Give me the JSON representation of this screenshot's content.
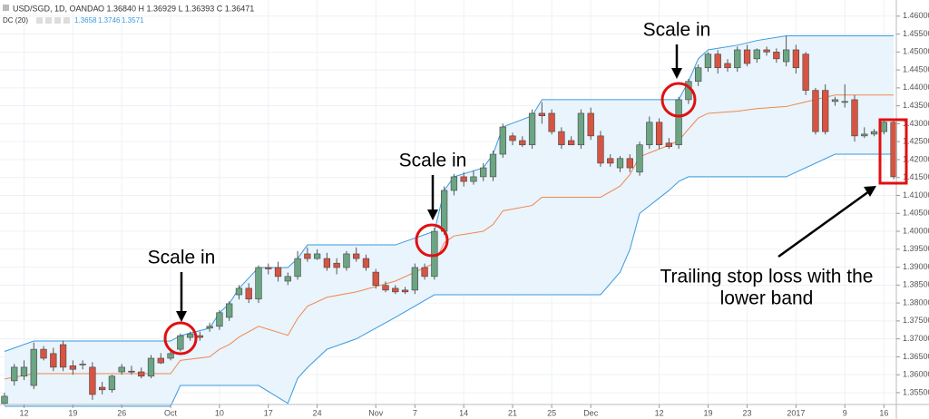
{
  "chart_data": {
    "type": "candlestick",
    "symbol": "USD/SGD, 1D, OANDA",
    "ohlc_text": "O 1.36840 H 1.36929 L 1.36393 C 1.36471",
    "indicator_name": "DC (20)",
    "indicator_values": [
      "1.3658",
      "1.3746",
      "1.3571"
    ],
    "up_color": "#6ba583",
    "down_color": "#d75442",
    "grid": true,
    "xlim": [
      -0.46,
      91.27
    ],
    "ylim": [
      1.3517,
      1.4645
    ],
    "yticks": [
      {
        "value": 1.355,
        "label": "1.35500"
      },
      {
        "value": 1.36,
        "label": "1.36000"
      },
      {
        "value": 1.365,
        "label": "1.36500"
      },
      {
        "value": 1.37,
        "label": "1.37000"
      },
      {
        "value": 1.375,
        "label": "1.37500"
      },
      {
        "value": 1.38,
        "label": "1.38000"
      },
      {
        "value": 1.385,
        "label": "1.38500"
      },
      {
        "value": 1.39,
        "label": "1.39000"
      },
      {
        "value": 1.395,
        "label": "1.39500"
      },
      {
        "value": 1.4,
        "label": "1.40000"
      },
      {
        "value": 1.405,
        "label": "1.40500"
      },
      {
        "value": 1.41,
        "label": "1.41000"
      },
      {
        "value": 1.415,
        "label": "1.41500"
      },
      {
        "value": 1.42,
        "label": "1.42000"
      },
      {
        "value": 1.425,
        "label": "1.42500"
      },
      {
        "value": 1.43,
        "label": "1.43000"
      },
      {
        "value": 1.435,
        "label": "1.43500"
      },
      {
        "value": 1.44,
        "label": "1.44000"
      },
      {
        "value": 1.445,
        "label": "1.44500"
      },
      {
        "value": 1.45,
        "label": "1.45000"
      },
      {
        "value": 1.455,
        "label": "1.45500"
      },
      {
        "value": 1.46,
        "label": "1.46000"
      }
    ],
    "xticks": [
      {
        "value": 2,
        "label": "12"
      },
      {
        "value": 7,
        "label": "19"
      },
      {
        "value": 12,
        "label": "26"
      },
      {
        "value": 17,
        "label": "Oct"
      },
      {
        "value": 22,
        "label": "10"
      },
      {
        "value": 27,
        "label": "17"
      },
      {
        "value": 32,
        "label": "24"
      },
      {
        "value": 38,
        "label": "Nov"
      },
      {
        "value": 42,
        "label": "7"
      },
      {
        "value": 47,
        "label": "14"
      },
      {
        "value": 52,
        "label": "21"
      },
      {
        "value": 56,
        "label": "25"
      },
      {
        "value": 60,
        "label": "Dec"
      },
      {
        "value": 67,
        "label": "12"
      },
      {
        "value": 72,
        "label": "19"
      },
      {
        "value": 76,
        "label": "23"
      },
      {
        "value": 81,
        "label": "2017"
      },
      {
        "value": 86,
        "label": "9"
      },
      {
        "value": 90,
        "label": "16"
      }
    ],
    "open": [
      1.352,
      1.3583,
      1.3596,
      1.357,
      1.3671,
      1.3659,
      1.3684,
      1.3625,
      1.3628,
      1.3621,
      1.3565,
      1.3558,
      1.3608,
      1.361,
      1.3608,
      1.3596,
      1.3646,
      1.3646,
      1.3671,
      1.3704,
      1.3709,
      1.373,
      1.3735,
      1.376,
      1.3823,
      1.3841,
      1.3811,
      1.3899,
      1.3899,
      1.3861,
      1.3874,
      1.3937,
      1.3924,
      1.3924,
      1.3911,
      1.3899,
      1.3937,
      1.3924,
      1.3886,
      1.3849,
      1.3841,
      1.3836,
      1.3836,
      1.3899,
      1.3874,
      1.4,
      1.4114,
      1.4152,
      1.4139,
      1.4152,
      1.4152,
      1.4215,
      1.4266,
      1.4253,
      1.4241,
      1.4329,
      1.4329,
      1.4278,
      1.4253,
      1.4241,
      1.4329,
      1.4266,
      1.4203,
      1.4177,
      1.4203,
      1.4165,
      1.4241,
      1.4304,
      1.4246,
      1.4241,
      1.4367,
      1.4418,
      1.4456,
      1.4494,
      1.4468,
      1.4456,
      1.4506,
      1.4481,
      1.4506,
      1.45,
      1.4473,
      1.4506,
      1.4494,
      1.4393,
      1.4393,
      1.4362,
      1.4362,
      1.4367,
      1.4266,
      1.4271,
      1.4278,
      1.4304
    ],
    "high": [
      1.355,
      1.363,
      1.364,
      1.369,
      1.368,
      1.3675,
      1.3695,
      1.364,
      1.364,
      1.3635,
      1.358,
      1.36,
      1.363,
      1.3625,
      1.362,
      1.3655,
      1.366,
      1.3665,
      1.3715,
      1.372,
      1.372,
      1.3745,
      1.378,
      1.3805,
      1.385,
      1.3855,
      1.3905,
      1.391,
      1.3915,
      1.3885,
      1.3945,
      1.3955,
      1.395,
      1.394,
      1.3925,
      1.3945,
      1.3955,
      1.3935,
      1.3895,
      1.386,
      1.385,
      1.3845,
      1.391,
      1.391,
      1.401,
      1.4125,
      1.416,
      1.4165,
      1.417,
      1.419,
      1.4225,
      1.43,
      1.4275,
      1.4265,
      1.434,
      1.436,
      1.434,
      1.429,
      1.4265,
      1.434,
      1.4345,
      1.428,
      1.4215,
      1.421,
      1.4215,
      1.425,
      1.432,
      1.4315,
      1.426,
      1.4375,
      1.4425,
      1.4465,
      1.45,
      1.4505,
      1.448,
      1.4515,
      1.452,
      1.451,
      1.4515,
      1.451,
      1.4545,
      1.452,
      1.45,
      1.44,
      1.441,
      1.4375,
      1.441,
      1.438,
      1.429,
      1.4285,
      1.431,
      1.431
    ],
    "low": [
      1.3515,
      1.357,
      1.3585,
      1.356,
      1.364,
      1.361,
      1.361,
      1.36,
      1.3615,
      1.353,
      1.3545,
      1.355,
      1.36,
      1.36,
      1.359,
      1.359,
      1.363,
      1.364,
      1.3665,
      1.3695,
      1.3695,
      1.372,
      1.3725,
      1.375,
      1.381,
      1.38,
      1.38,
      1.388,
      1.386,
      1.385,
      1.3865,
      1.3915,
      1.392,
      1.389,
      1.388,
      1.389,
      1.3915,
      1.389,
      1.384,
      1.383,
      1.3825,
      1.3825,
      1.3825,
      1.3865,
      1.3865,
      1.399,
      1.41,
      1.4125,
      1.413,
      1.414,
      1.414,
      1.4205,
      1.424,
      1.4235,
      1.423,
      1.43,
      1.427,
      1.423,
      1.424,
      1.423,
      1.4255,
      1.418,
      1.418,
      1.4165,
      1.4165,
      1.4155,
      1.423,
      1.423,
      1.423,
      1.423,
      1.4355,
      1.4405,
      1.4445,
      1.444,
      1.4445,
      1.4445,
      1.446,
      1.447,
      1.449,
      1.447,
      1.446,
      1.444,
      1.438,
      1.427,
      1.427,
      1.435,
      1.4345,
      1.425,
      1.426,
      1.4265,
      1.427,
      1.4145
    ],
    "close": [
      1.354,
      1.3621,
      1.3621,
      1.3671,
      1.3646,
      1.3621,
      1.3621,
      1.3615,
      1.363,
      1.3545,
      1.3558,
      1.3596,
      1.3621,
      1.3608,
      1.3596,
      1.3646,
      1.3633,
      1.3659,
      1.3709,
      1.3714,
      1.3704,
      1.3735,
      1.3773,
      1.3798,
      1.3841,
      1.3811,
      1.3899,
      1.3895,
      1.3874,
      1.3874,
      1.3924,
      1.3924,
      1.3937,
      1.3899,
      1.3899,
      1.3937,
      1.3924,
      1.3899,
      1.3849,
      1.3836,
      1.3831,
      1.3831,
      1.3899,
      1.3874,
      1.4,
      1.4114,
      1.4152,
      1.4139,
      1.4152,
      1.4177,
      1.4215,
      1.4291,
      1.4253,
      1.4241,
      1.4329,
      1.4322,
      1.4278,
      1.4241,
      1.4241,
      1.4329,
      1.4266,
      1.419,
      1.419,
      1.4203,
      1.4177,
      1.4241,
      1.4304,
      1.4241,
      1.4236,
      1.4367,
      1.4418,
      1.4456,
      1.4494,
      1.4456,
      1.4456,
      1.4506,
      1.4468,
      1.4506,
      1.45,
      1.4481,
      1.4506,
      1.4456,
      1.4393,
      1.4278,
      1.4278,
      1.4367,
      1.4362,
      1.4266,
      1.4271,
      1.4278,
      1.4304,
      1.4152
    ],
    "channel": {
      "x": [
        0,
        3,
        17,
        18,
        21,
        22,
        23,
        24,
        26,
        29,
        30,
        31,
        33,
        36,
        40,
        44,
        45,
        46,
        49,
        50,
        51,
        54,
        55,
        61,
        63,
        64,
        65,
        68,
        69,
        70,
        71,
        72,
        75,
        77,
        80,
        85,
        91
      ],
      "fill": "#e9f4fc",
      "series": [
        {
          "color": "#3a9ae0",
          "values": [
            1.3665,
            1.3694,
            1.3694,
            1.3709,
            1.373,
            1.3773,
            1.3798,
            1.3841,
            1.3899,
            1.3899,
            1.3924,
            1.3962,
            1.3962,
            1.3962,
            1.3962,
            1.4,
            1.4114,
            1.4152,
            1.4177,
            1.4215,
            1.4291,
            1.4322,
            1.4367,
            1.4367,
            1.4367,
            1.4367,
            1.4367,
            1.4367,
            1.4367,
            1.4418,
            1.4481,
            1.4506,
            1.4519,
            1.4532,
            1.4545,
            1.4545,
            1.4545
          ]
        },
        {
          "color": "#f0884f",
          "values": [
            1.3588,
            1.3603,
            1.3603,
            1.364,
            1.365,
            1.3671,
            1.3684,
            1.3705,
            1.3735,
            1.371,
            1.3757,
            1.3791,
            1.3816,
            1.3831,
            1.3861,
            1.3911,
            1.3968,
            1.3987,
            1.4,
            1.4019,
            1.4057,
            1.4072,
            1.4095,
            1.4095,
            1.4126,
            1.4158,
            1.4208,
            1.424,
            1.4253,
            1.4285,
            1.4316,
            1.4329,
            1.4335,
            1.4342,
            1.4348,
            1.438,
            1.438
          ]
        },
        {
          "color": "#3a9ae0",
          "values": [
            1.3512,
            1.3512,
            1.3512,
            1.357,
            1.357,
            1.357,
            1.357,
            1.357,
            1.357,
            1.352,
            1.359,
            1.362,
            1.3671,
            1.37,
            1.376,
            1.3823,
            1.3823,
            1.3823,
            1.3823,
            1.3823,
            1.3823,
            1.3823,
            1.3823,
            1.3823,
            1.3886,
            1.3949,
            1.405,
            1.4114,
            1.4139,
            1.4152,
            1.4152,
            1.4152,
            1.4152,
            1.4152,
            1.4152,
            1.4215,
            1.4215
          ]
        }
      ]
    },
    "annotations": [
      "Scale in",
      "Scale in",
      "Scale in",
      "Trailing stop loss with the",
      "lower band"
    ]
  }
}
